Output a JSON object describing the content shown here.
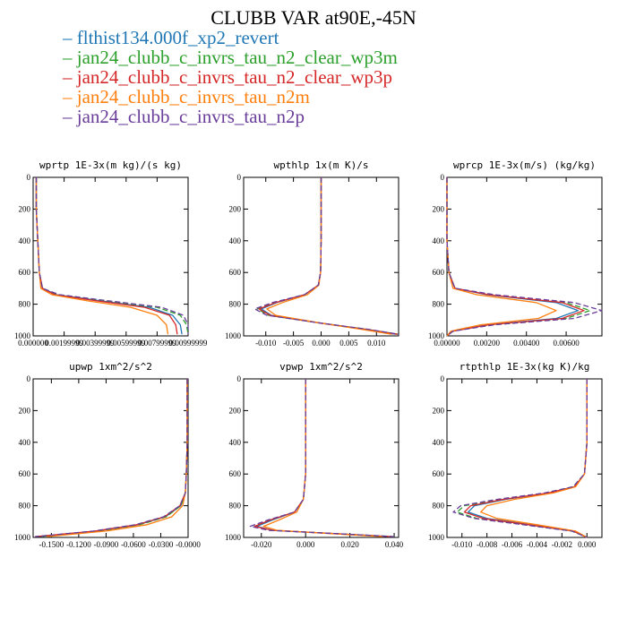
{
  "figure": {
    "title": "CLUBB VAR at90E,-45N",
    "legend": [
      {
        "label": "flthist134.000f_xp2_revert",
        "color": "#1f77b4",
        "dash": "solid"
      },
      {
        "label": "jan24_clubb_c_invrs_tau_n2_clear_wp3m",
        "color": "#2ca02c",
        "dash": "dashed"
      },
      {
        "label": "jan24_clubb_c_invrs_tau_n2_clear_wp3p",
        "color": "#d62728",
        "dash": "solid"
      },
      {
        "label": "jan24_clubb_c_invrs_tau_n2m",
        "color": "#ff7f0e",
        "dash": "solid"
      },
      {
        "label": "jan24_clubb_c_invrs_tau_n2p",
        "color": "#6a3d9a",
        "dash": "dashed"
      }
    ]
  },
  "chart_data": [
    {
      "type": "line",
      "title": "wprtp  1E-3x(m kg)/(s kg)",
      "xlim": [
        0,
        0.01
      ],
      "ylim": [
        1000,
        0
      ],
      "y_ticks": [
        "0",
        "200",
        "400",
        "600",
        "800",
        "1000"
      ],
      "x_ticks": [
        {
          "v": 0.0,
          "t": "0.000000"
        },
        {
          "v": 0.002,
          "t": "0.00199999"
        },
        {
          "v": 0.004,
          "t": "0.00399999"
        },
        {
          "v": 0.006,
          "t": "0.00599999"
        },
        {
          "v": 0.008,
          "t": "0.00799999"
        },
        {
          "v": 0.01,
          "t": "0.00999999"
        }
      ],
      "series": [
        {
          "x": [
            0.0002,
            0.0002,
            0.0003,
            0.0004,
            0.0006,
            0.0015,
            0.0045,
            0.0075,
            0.009,
            0.0095,
            0.0096
          ],
          "y": [
            0,
            200,
            400,
            600,
            700,
            740,
            780,
            820,
            870,
            930,
            990
          ]
        },
        {
          "x": [
            0.0002,
            0.0002,
            0.0003,
            0.0004,
            0.0006,
            0.0016,
            0.0048,
            0.008,
            0.0095,
            0.0099,
            0.01
          ],
          "y": [
            0,
            200,
            400,
            600,
            700,
            740,
            780,
            820,
            870,
            930,
            990
          ]
        },
        {
          "x": [
            0.0002,
            0.0002,
            0.0003,
            0.0004,
            0.0006,
            0.0014,
            0.0042,
            0.0072,
            0.0088,
            0.0092,
            0.0093
          ],
          "y": [
            0,
            200,
            400,
            600,
            700,
            740,
            780,
            820,
            870,
            930,
            990
          ]
        },
        {
          "x": [
            0.0002,
            0.0002,
            0.0003,
            0.0004,
            0.0005,
            0.0012,
            0.0036,
            0.0063,
            0.008,
            0.0086,
            0.0087
          ],
          "y": [
            0,
            200,
            400,
            600,
            700,
            740,
            780,
            820,
            870,
            930,
            990
          ]
        },
        {
          "x": [
            0.0002,
            0.0002,
            0.0003,
            0.0004,
            0.0006,
            0.0017,
            0.005,
            0.0083,
            0.0097,
            0.01,
            0.01
          ],
          "y": [
            0,
            200,
            400,
            600,
            700,
            740,
            780,
            820,
            870,
            930,
            990
          ]
        }
      ]
    },
    {
      "type": "line",
      "title": "wpthlp  1x(m K)/s",
      "xlim": [
        -0.014,
        0.014
      ],
      "ylim": [
        1000,
        0
      ],
      "y_ticks": [
        "0",
        "200",
        "400",
        "600",
        "800",
        "1000"
      ],
      "x_ticks": [
        {
          "v": -0.01,
          "t": "-0.010"
        },
        {
          "v": -0.005,
          "t": "-0.005"
        },
        {
          "v": 0.0,
          "t": "0.000"
        },
        {
          "v": 0.005,
          "t": "0.005"
        },
        {
          "v": 0.01,
          "t": "0.010"
        }
      ],
      "series": [
        {
          "x": [
            0.0,
            0.0,
            0.0,
            -0.0001,
            -0.0005,
            -0.003,
            -0.008,
            -0.0108,
            -0.009,
            0.0,
            0.008,
            0.0135
          ],
          "y": [
            0,
            200,
            400,
            600,
            680,
            740,
            790,
            830,
            870,
            920,
            960,
            990
          ]
        },
        {
          "x": [
            0.0,
            0.0,
            0.0,
            -0.0001,
            -0.0005,
            -0.003,
            -0.0085,
            -0.0115,
            -0.0095,
            0.0,
            0.0085,
            0.014
          ],
          "y": [
            0,
            200,
            400,
            600,
            680,
            740,
            790,
            830,
            870,
            920,
            960,
            990
          ]
        },
        {
          "x": [
            0.0,
            0.0,
            0.0,
            -0.0001,
            -0.0005,
            -0.003,
            -0.0082,
            -0.0112,
            -0.0092,
            0.0,
            0.0082,
            0.0138
          ],
          "y": [
            0,
            200,
            400,
            600,
            680,
            740,
            790,
            830,
            870,
            920,
            960,
            990
          ]
        },
        {
          "x": [
            0.0,
            0.0,
            0.0,
            -0.0001,
            -0.0004,
            -0.0025,
            -0.007,
            -0.0098,
            -0.0082,
            0.0,
            0.0075,
            0.0128
          ],
          "y": [
            0,
            200,
            400,
            600,
            680,
            740,
            790,
            830,
            870,
            920,
            960,
            990
          ]
        },
        {
          "x": [
            0.0,
            0.0,
            0.0,
            -0.0001,
            -0.0005,
            -0.003,
            -0.0088,
            -0.012,
            -0.0098,
            0.0,
            0.0088,
            0.014
          ],
          "y": [
            0,
            200,
            400,
            600,
            680,
            740,
            790,
            830,
            870,
            920,
            960,
            990
          ]
        }
      ]
    },
    {
      "type": "line",
      "title": "wprcp  1E-3x(m/s) (kg/kg)",
      "xlim": [
        0,
        0.0078
      ],
      "ylim": [
        1000,
        0
      ],
      "y_ticks": [
        "0",
        "200",
        "400",
        "600",
        "800",
        "1000"
      ],
      "x_ticks": [
        {
          "v": 0.0,
          "t": "0.00000"
        },
        {
          "v": 0.002,
          "t": "0.00200"
        },
        {
          "v": 0.004,
          "t": "0.00400"
        },
        {
          "v": 0.006,
          "t": "0.00600"
        }
      ],
      "series": [
        {
          "x": [
            0.0,
            0.0,
            0.0,
            0.0001,
            0.0004,
            0.002,
            0.0055,
            0.0066,
            0.0055,
            0.002,
            0.0003,
            0.0
          ],
          "y": [
            0,
            200,
            400,
            600,
            700,
            740,
            790,
            840,
            890,
            930,
            970,
            1000
          ]
        },
        {
          "x": [
            0.0,
            0.0,
            0.0,
            0.0001,
            0.0004,
            0.0022,
            0.006,
            0.0072,
            0.006,
            0.0022,
            0.0003,
            0.0
          ],
          "y": [
            0,
            200,
            400,
            600,
            700,
            740,
            790,
            840,
            890,
            930,
            970,
            1000
          ]
        },
        {
          "x": [
            0.0,
            0.0,
            0.0,
            0.0001,
            0.0004,
            0.0021,
            0.0058,
            0.0069,
            0.0058,
            0.0021,
            0.0003,
            0.0
          ],
          "y": [
            0,
            200,
            400,
            600,
            700,
            740,
            790,
            840,
            890,
            930,
            970,
            1000
          ]
        },
        {
          "x": [
            0.0,
            0.0,
            0.0,
            0.0001,
            0.0003,
            0.0015,
            0.0045,
            0.0055,
            0.0046,
            0.0017,
            0.0002,
            0.0
          ],
          "y": [
            0,
            200,
            400,
            600,
            700,
            740,
            790,
            840,
            890,
            930,
            970,
            1000
          ]
        },
        {
          "x": [
            0.0,
            0.0,
            0.0,
            0.0001,
            0.0004,
            0.0024,
            0.0064,
            0.0078,
            0.0064,
            0.0024,
            0.0003,
            0.0
          ],
          "y": [
            0,
            200,
            400,
            600,
            700,
            740,
            790,
            840,
            890,
            930,
            970,
            1000
          ]
        }
      ]
    },
    {
      "type": "line",
      "title": "upwp  1xm^2/s^2",
      "xlim": [
        -0.17,
        0.0
      ],
      "ylim": [
        1000,
        0
      ],
      "y_ticks": [
        "0",
        "200",
        "400",
        "600",
        "800",
        "1000"
      ],
      "x_ticks": [
        {
          "v": -0.15,
          "t": "-0.1500"
        },
        {
          "v": -0.12,
          "t": "-0.1200"
        },
        {
          "v": -0.09,
          "t": "-0.0900"
        },
        {
          "v": -0.06,
          "t": "-0.0600"
        },
        {
          "v": -0.03,
          "t": "-0.0300"
        },
        {
          "v": 0.0,
          "t": "-0.0000"
        }
      ],
      "series": [
        {
          "x": [
            -0.001,
            -0.001,
            -0.001,
            -0.002,
            -0.003,
            -0.008,
            -0.025,
            -0.055,
            -0.1,
            -0.165
          ],
          "y": [
            0,
            200,
            400,
            600,
            720,
            800,
            870,
            920,
            960,
            995
          ]
        },
        {
          "x": [
            -0.001,
            -0.001,
            -0.001,
            -0.002,
            -0.003,
            -0.008,
            -0.024,
            -0.053,
            -0.098,
            -0.162
          ],
          "y": [
            0,
            200,
            400,
            600,
            720,
            800,
            870,
            920,
            960,
            995
          ]
        },
        {
          "x": [
            -0.001,
            -0.001,
            -0.001,
            -0.002,
            -0.003,
            -0.009,
            -0.026,
            -0.056,
            -0.102,
            -0.168
          ],
          "y": [
            0,
            200,
            400,
            600,
            720,
            800,
            870,
            920,
            960,
            995
          ]
        },
        {
          "x": [
            -0.001,
            -0.001,
            -0.001,
            -0.002,
            -0.003,
            -0.006,
            -0.018,
            -0.045,
            -0.09,
            -0.155
          ],
          "y": [
            0,
            200,
            400,
            600,
            720,
            800,
            870,
            920,
            960,
            995
          ]
        },
        {
          "x": [
            -0.001,
            -0.001,
            -0.001,
            -0.002,
            -0.003,
            -0.009,
            -0.027,
            -0.058,
            -0.104,
            -0.168
          ],
          "y": [
            0,
            200,
            400,
            600,
            720,
            800,
            870,
            920,
            960,
            995
          ]
        }
      ]
    },
    {
      "type": "line",
      "title": "vpwp  1xm^2/s^2",
      "xlim": [
        -0.028,
        0.042
      ],
      "ylim": [
        1000,
        0
      ],
      "y_ticks": [
        "0",
        "200",
        "400",
        "600",
        "800",
        "1000"
      ],
      "x_ticks": [
        {
          "v": -0.02,
          "t": "-0.020"
        },
        {
          "v": 0.0,
          "t": "0.000"
        },
        {
          "v": 0.02,
          "t": "0.020"
        },
        {
          "v": 0.04,
          "t": "0.040"
        }
      ],
      "series": [
        {
          "x": [
            0.0,
            0.0,
            0.0,
            0.0,
            -0.001,
            -0.005,
            -0.015,
            -0.022,
            -0.015,
            0.005,
            0.025,
            0.038
          ],
          "y": [
            0,
            200,
            400,
            600,
            760,
            840,
            890,
            930,
            955,
            970,
            985,
            995
          ]
        },
        {
          "x": [
            0.0,
            0.0,
            0.0,
            0.0,
            -0.001,
            -0.005,
            -0.016,
            -0.023,
            -0.016,
            0.005,
            0.026,
            0.04
          ],
          "y": [
            0,
            200,
            400,
            600,
            760,
            840,
            890,
            930,
            955,
            970,
            985,
            995
          ]
        },
        {
          "x": [
            0.0,
            0.0,
            0.0,
            0.0,
            -0.001,
            -0.005,
            -0.016,
            -0.023,
            -0.015,
            0.005,
            0.025,
            0.039
          ],
          "y": [
            0,
            200,
            400,
            600,
            760,
            840,
            890,
            930,
            955,
            970,
            985,
            995
          ]
        },
        {
          "x": [
            0.0,
            0.0,
            0.0,
            0.0,
            -0.001,
            -0.004,
            -0.012,
            -0.019,
            -0.013,
            0.004,
            0.022,
            0.035
          ],
          "y": [
            0,
            200,
            400,
            600,
            760,
            840,
            890,
            930,
            955,
            970,
            985,
            995
          ]
        },
        {
          "x": [
            0.0,
            0.0,
            0.0,
            0.0,
            -0.001,
            -0.005,
            -0.017,
            -0.025,
            -0.017,
            0.005,
            0.026,
            0.04
          ],
          "y": [
            0,
            200,
            400,
            600,
            760,
            840,
            890,
            930,
            955,
            970,
            985,
            995
          ]
        }
      ]
    },
    {
      "type": "line",
      "title": "rtpthlp  1E-3x(kg K)/kg",
      "xlim": [
        -0.0112,
        0.0012
      ],
      "ylim": [
        1000,
        0
      ],
      "y_ticks": [
        "0",
        "200",
        "400",
        "600",
        "800",
        "1000"
      ],
      "x_ticks": [
        {
          "v": -0.01,
          "t": "-0.010"
        },
        {
          "v": -0.008,
          "t": "-0.008"
        },
        {
          "v": -0.006,
          "t": "-0.006"
        },
        {
          "v": -0.004,
          "t": "-0.004"
        },
        {
          "v": -0.002,
          "t": "-0.002"
        },
        {
          "v": 0.0,
          "t": "0.000"
        }
      ],
      "series": [
        {
          "x": [
            0.0,
            0.0,
            0.0,
            -0.0002,
            -0.001,
            -0.003,
            -0.0065,
            -0.009,
            -0.0095,
            -0.008,
            -0.0045,
            -0.001,
            0.0
          ],
          "y": [
            0,
            200,
            400,
            600,
            680,
            720,
            760,
            800,
            840,
            880,
            920,
            960,
            1000
          ]
        },
        {
          "x": [
            0.0,
            0.0,
            0.0,
            -0.0002,
            -0.0011,
            -0.0033,
            -0.007,
            -0.0098,
            -0.0104,
            -0.0088,
            -0.005,
            -0.0012,
            0.0
          ],
          "y": [
            0,
            200,
            400,
            600,
            680,
            720,
            760,
            800,
            840,
            880,
            920,
            960,
            1000
          ]
        },
        {
          "x": [
            0.0,
            0.0,
            0.0,
            -0.0002,
            -0.001,
            -0.0031,
            -0.0067,
            -0.0093,
            -0.0098,
            -0.0083,
            -0.0047,
            -0.0011,
            0.0
          ],
          "y": [
            0,
            200,
            400,
            600,
            680,
            720,
            760,
            800,
            840,
            880,
            920,
            960,
            1000
          ]
        },
        {
          "x": [
            0.0,
            0.0,
            0.0,
            -0.0002,
            -0.0009,
            -0.0027,
            -0.0058,
            -0.008,
            -0.0085,
            -0.0072,
            -0.004,
            -0.0009,
            0.0
          ],
          "y": [
            0,
            200,
            400,
            600,
            680,
            720,
            760,
            800,
            840,
            880,
            920,
            960,
            1000
          ]
        },
        {
          "x": [
            0.0,
            0.0,
            0.0,
            -0.0002,
            -0.0011,
            -0.0034,
            -0.0072,
            -0.0101,
            -0.0107,
            -0.009,
            -0.0051,
            -0.0012,
            0.0
          ],
          "y": [
            0,
            200,
            400,
            600,
            680,
            720,
            760,
            800,
            840,
            880,
            920,
            960,
            1000
          ]
        }
      ]
    }
  ]
}
